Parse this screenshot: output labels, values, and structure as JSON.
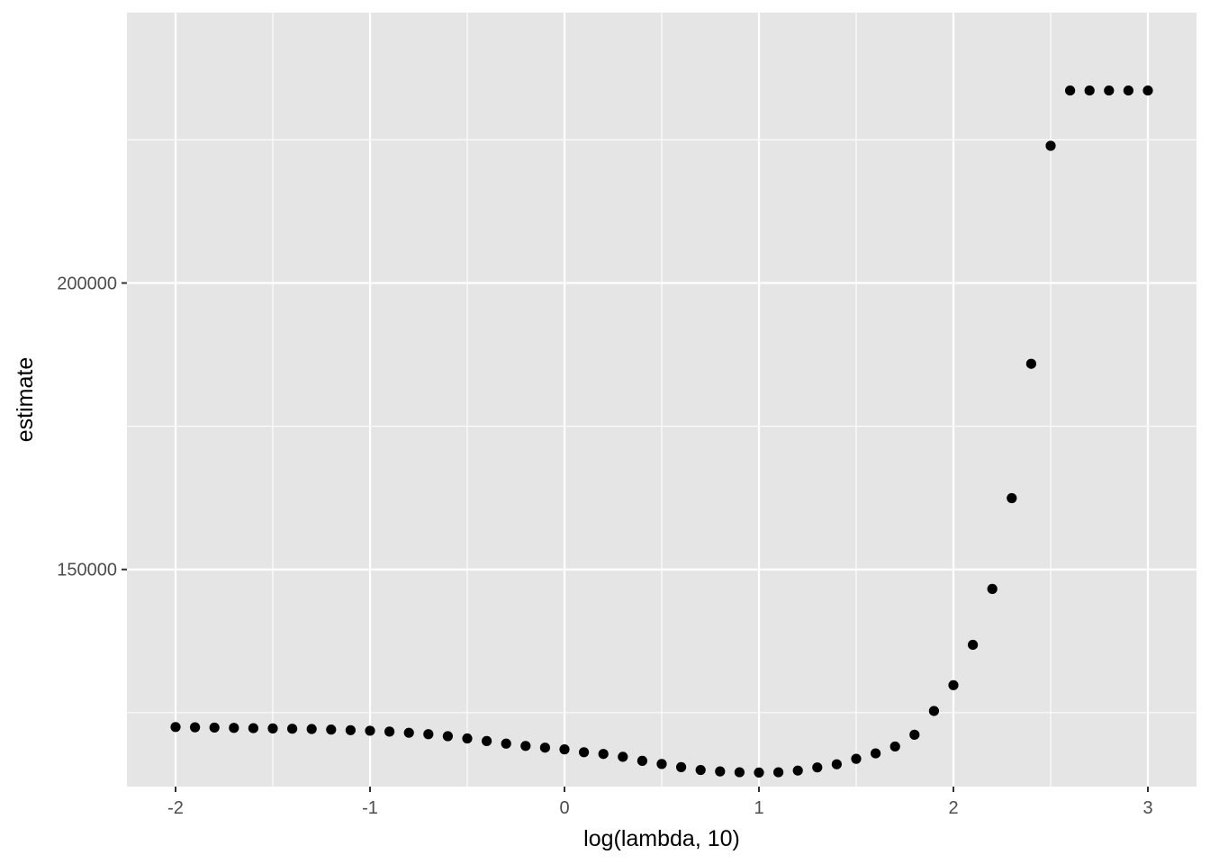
{
  "chart_data": {
    "type": "scatter",
    "title": "",
    "xlabel": "log(lambda, 10)",
    "ylabel": "estimate",
    "xlim": [
      -2.25,
      3.25
    ],
    "ylim": [
      112100,
      247200
    ],
    "x_ticks": [
      -2,
      -1,
      0,
      1,
      2,
      3
    ],
    "x_tick_labels": [
      "-2",
      "-1",
      "0",
      "1",
      "2",
      "3"
    ],
    "y_ticks": [
      150000,
      200000
    ],
    "y_tick_labels": [
      "150000",
      "200000"
    ],
    "y_minor_grid": [
      125000,
      175000,
      225000
    ],
    "x_minor_grid": [
      -1.5,
      -0.5,
      0.5,
      1.5,
      2.5
    ],
    "grid": true,
    "legend": "none",
    "panel_color": "#e5e5e5",
    "point_color": "#000000",
    "x": [
      -2.0,
      -1.9,
      -1.8,
      -1.7,
      -1.6,
      -1.5,
      -1.4,
      -1.3,
      -1.2,
      -1.1,
      -1.0,
      -0.9,
      -0.8,
      -0.7,
      -0.6,
      -0.5,
      -0.4,
      -0.3,
      -0.2,
      -0.1,
      0.0,
      0.1,
      0.2,
      0.3,
      0.4,
      0.5,
      0.6,
      0.7,
      0.8,
      0.9,
      1.0,
      1.1,
      1.2,
      1.3,
      1.4,
      1.5,
      1.6,
      1.7,
      1.8,
      1.9,
      2.0,
      2.1,
      2.2,
      2.3,
      2.4,
      2.5,
      2.6,
      2.7,
      2.8,
      2.9,
      3.0
    ],
    "y": [
      122500,
      122450,
      122400,
      122350,
      122300,
      122250,
      122200,
      122150,
      122050,
      121950,
      121850,
      121700,
      121500,
      121250,
      120900,
      120500,
      120050,
      119600,
      119200,
      118900,
      118600,
      118100,
      117800,
      117300,
      116600,
      116050,
      115500,
      115000,
      114750,
      114600,
      114550,
      114600,
      114900,
      115450,
      116000,
      116950,
      117900,
      119100,
      121150,
      125300,
      129800,
      136850,
      146600,
      162450,
      185900,
      223950,
      233600,
      233600,
      233600,
      233600,
      233600
    ]
  }
}
